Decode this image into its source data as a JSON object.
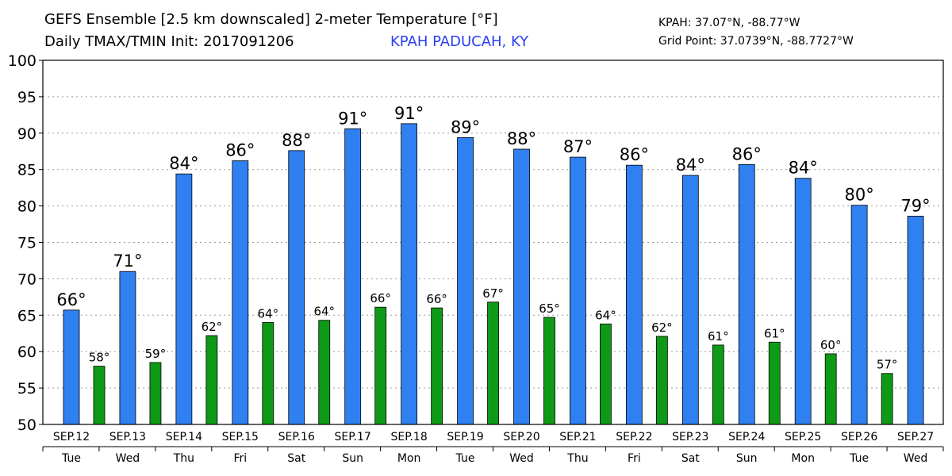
{
  "header": {
    "title_line1": "GEFS Ensemble [2.5 km downscaled] 2-meter Temperature [°F]",
    "title_line2": "Daily TMAX/TMIN Init: 2017091206",
    "station": "KPAH PADUCAH, KY",
    "coord_line1": "KPAH: 37.07°N, -88.77°W",
    "coord_line2": "Grid Point: 37.0739°N, -88.7727°W"
  },
  "colors": {
    "tmax": "#2f80f0",
    "tmin": "#0e9a16",
    "station_text": "#2a3ff0",
    "grid": "#999999"
  },
  "chart_data": {
    "type": "bar",
    "title": "GEFS Ensemble [2.5 km downscaled] 2-meter Temperature [°F]",
    "ylim": [
      50,
      100
    ],
    "yticks": [
      50,
      55,
      60,
      65,
      70,
      75,
      80,
      85,
      90,
      95,
      100
    ],
    "grid": true,
    "categories": [
      "SEP.12",
      "SEP.13",
      "SEP.14",
      "SEP.15",
      "SEP.16",
      "SEP.17",
      "SEP.18",
      "SEP.19",
      "SEP.20",
      "SEP.21",
      "SEP.22",
      "SEP.23",
      "SEP.24",
      "SEP.25",
      "SEP.26",
      "SEP.27"
    ],
    "weekdays": [
      "Tue",
      "Wed",
      "Thu",
      "Fri",
      "Sat",
      "Sun",
      "Mon",
      "Tue",
      "Wed",
      "Thu",
      "Fri",
      "Sat",
      "Sun",
      "Mon",
      "Tue",
      "Wed"
    ],
    "series": [
      {
        "key": "tmax",
        "values": [
          65.7,
          71.0,
          84.4,
          86.2,
          87.6,
          90.6,
          91.3,
          89.4,
          87.8,
          86.7,
          85.6,
          84.2,
          85.7,
          83.8,
          80.1,
          78.6
        ],
        "labels": [
          "66°",
          "71°",
          "84°",
          "86°",
          "88°",
          "91°",
          "91°",
          "89°",
          "88°",
          "87°",
          "86°",
          "84°",
          "86°",
          "84°",
          "80°",
          "79°"
        ]
      },
      {
        "key": "tmin",
        "values": [
          58.0,
          58.5,
          62.2,
          64.0,
          64.3,
          66.1,
          66.0,
          66.8,
          64.7,
          63.8,
          62.1,
          60.9,
          61.3,
          59.7,
          57.0,
          null
        ],
        "labels": [
          "58°",
          "59°",
          "62°",
          "64°",
          "64°",
          "66°",
          "66°",
          "67°",
          "65°",
          "64°",
          "62°",
          "61°",
          "61°",
          "60°",
          "57°",
          ""
        ]
      }
    ]
  }
}
